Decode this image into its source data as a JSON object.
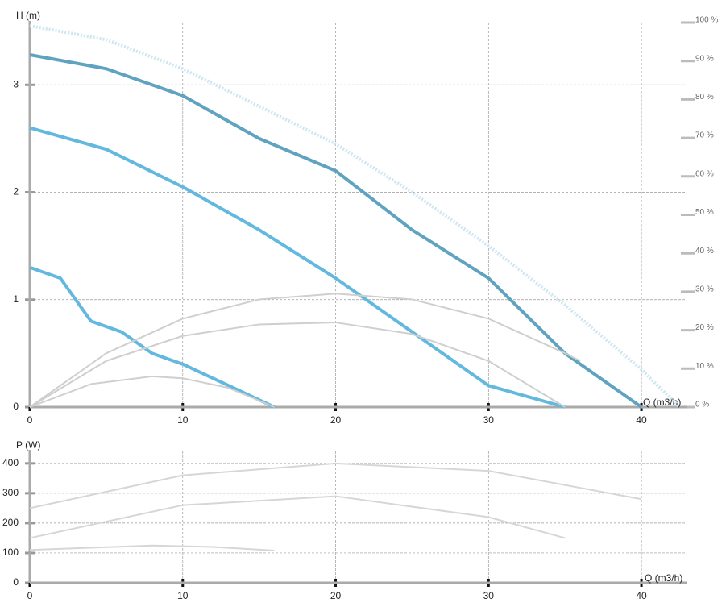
{
  "chart_data": [
    {
      "type": "line",
      "y_label": "H (m)",
      "x_label": "Q (m3/h)",
      "grid": true,
      "xlim": [
        0,
        43
      ],
      "xticks": [
        0,
        10,
        20,
        30,
        40
      ],
      "ylim": [
        0,
        3.58
      ],
      "yticks": [
        0,
        1,
        2,
        3
      ],
      "y2lim": [
        0,
        100
      ],
      "y2ticks": [
        {
          "value": 0,
          "label": "0 %"
        },
        {
          "value": 10,
          "label": "10 %"
        },
        {
          "value": 20,
          "label": "20 %"
        },
        {
          "value": 30,
          "label": "30 %"
        },
        {
          "value": 40,
          "label": "40 %"
        },
        {
          "value": 50,
          "label": "50 %"
        },
        {
          "value": 60,
          "label": "60 %"
        },
        {
          "value": 70,
          "label": "70 %"
        },
        {
          "value": 80,
          "label": "80 %"
        },
        {
          "value": 90,
          "label": "90 %"
        },
        {
          "value": 100,
          "label": "100 %"
        }
      ],
      "series": [
        {
          "color": "#cde6f2",
          "style": "dotted",
          "x": [
            0,
            5,
            10,
            15,
            20,
            25,
            30,
            35,
            40,
            42.5
          ],
          "values": [
            3.55,
            3.42,
            3.15,
            2.8,
            2.45,
            2.0,
            1.5,
            0.95,
            0.35,
            0
          ]
        },
        {
          "color": "#5fa3c0",
          "x": [
            0,
            5,
            10,
            15,
            20,
            25,
            30,
            35,
            40
          ],
          "values": [
            3.28,
            3.15,
            2.9,
            2.5,
            2.2,
            1.65,
            1.2,
            0.5,
            0
          ]
        },
        {
          "color": "#62b8df",
          "x": [
            0,
            5,
            10,
            15,
            20,
            25,
            30,
            35
          ],
          "values": [
            2.6,
            2.4,
            2.05,
            1.65,
            1.2,
            0.7,
            0.2,
            0
          ]
        },
        {
          "color": "#62b8df",
          "x": [
            0,
            2,
            4,
            6,
            8,
            10,
            13,
            16
          ],
          "values": [
            1.3,
            1.2,
            0.8,
            0.7,
            0.5,
            0.4,
            0.2,
            0
          ]
        },
        {
          "color": "#cfcfcf",
          "axis": "y2",
          "x": [
            0,
            5,
            10,
            15,
            20,
            25,
            30,
            35,
            36
          ],
          "values": [
            0,
            14,
            23,
            28,
            29.5,
            28,
            23,
            14,
            12
          ]
        },
        {
          "color": "#cfcfcf",
          "axis": "y2",
          "x": [
            0,
            5,
            10,
            15,
            20,
            25,
            30,
            35
          ],
          "values": [
            0,
            12,
            18.5,
            21.5,
            22,
            19,
            12,
            0
          ]
        },
        {
          "color": "#cfcfcf",
          "axis": "y2",
          "x": [
            0,
            4,
            8,
            10,
            13,
            16
          ],
          "values": [
            0,
            6,
            8,
            7.5,
            5,
            0
          ]
        }
      ]
    },
    {
      "type": "line",
      "y_label": "P (W)",
      "x_label": "Q (m3/h)",
      "grid": true,
      "xlim": [
        0,
        43
      ],
      "xticks": [
        0,
        10,
        20,
        30,
        40
      ],
      "ylim": [
        0,
        440
      ],
      "yticks": [
        0,
        100,
        200,
        300,
        400
      ],
      "series": [
        {
          "color": "#d6d6d6",
          "x": [
            0,
            10,
            20,
            30,
            40
          ],
          "values": [
            250,
            360,
            400,
            375,
            280
          ]
        },
        {
          "color": "#d6d6d6",
          "x": [
            0,
            10,
            20,
            30,
            35
          ],
          "values": [
            150,
            260,
            290,
            220,
            150
          ]
        },
        {
          "color": "#d6d6d6",
          "x": [
            0,
            8,
            12,
            16
          ],
          "values": [
            110,
            125,
            120,
            108
          ]
        }
      ]
    }
  ]
}
